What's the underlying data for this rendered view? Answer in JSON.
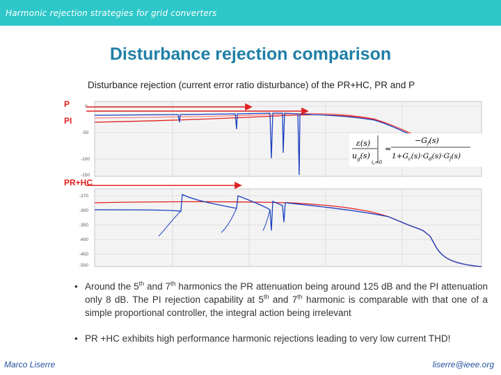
{
  "header": {
    "title": "Harmonic rejection strategies for grid converters"
  },
  "slide": {
    "title": "Disturbance rejection comparison",
    "subtitle": "Disturbance rejection (current error ratio disturbance) of the PR+HC, PR and P"
  },
  "figure": {
    "labels": {
      "p": "P",
      "pi": "PI",
      "prhc": "PR+HC"
    },
    "upper_ticks": [
      "0",
      "-50",
      "-100",
      "-150"
    ],
    "lower_ticks": [
      "-270",
      "-300",
      "-350",
      "-400",
      "-450",
      "-500"
    ],
    "equation": {
      "lhs_num": "ε(s)",
      "lhs_den": "u",
      "lhs_den_sub": "g",
      "lhs_den_tail": "(s)",
      "lhs_cond": "i",
      "lhs_cond_sub": "r",
      "lhs_cond_tail": "=0",
      "equals": "=",
      "rhs_num": "−G",
      "rhs_num_sub": "f",
      "rhs_num_tail": "(s)",
      "rhs_den": "1+G",
      "rhs_den_s1": "c",
      "rhs_den_t1": "(s)·G",
      "rhs_den_s2": "d",
      "rhs_den_t2": "(s)·G",
      "rhs_den_s3": "f",
      "rhs_den_t3": "(s)"
    },
    "colors": {
      "red": "#e02020",
      "blue": "#1a3fc0"
    }
  },
  "bullets": {
    "b1": {
      "pre": "Around the 5",
      "sup1": "th",
      "mid1": " and 7",
      "sup2": "th",
      "mid2": " harmonics the PR attenuation being around 125 dB and the PI attenuation only 8 dB. The PI rejection capability at 5",
      "sup3": "th",
      "mid3": " and 7",
      "sup4": "th",
      "post": " harmonic is comparable with that one of a simple proportional controller, the integral action being irrelevant"
    },
    "b2": {
      "text": "PR +HC exhibits high performance harmonic rejections leading to very low current THD!"
    },
    "bullet_char": "•"
  },
  "footer": {
    "author": "Marco Liserre",
    "email": "liserre@ieee.org"
  }
}
